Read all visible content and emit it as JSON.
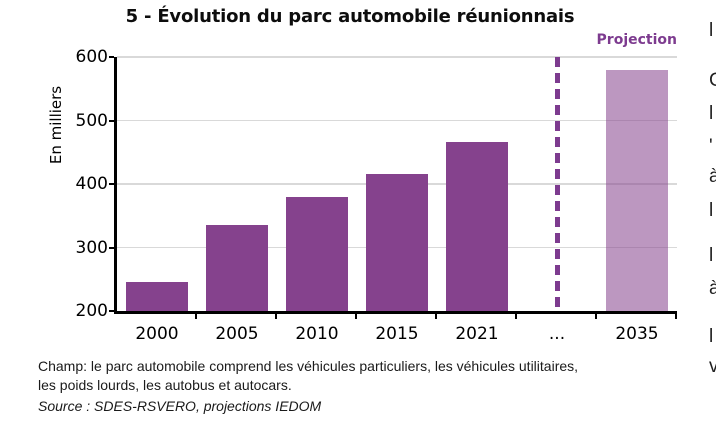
{
  "title": "5 - Évolution du parc automobile réunionnais",
  "projection_label": "Projection",
  "ylabel": "En milliers",
  "footer": {
    "champ_lines": [
      "Champ:  le parc automobile comprend les véhicules particuliers, les véhicules utilitaires,",
      "les poids lourds, les autobus et autocars."
    ],
    "source": "Source : SDES-RSVERO, projections IEDOM"
  },
  "chart_data": {
    "type": "bar",
    "title": "5 - Évolution du parc automobile réunionnais",
    "ylabel": "En milliers",
    "categories": [
      "2000",
      "2005",
      "2010",
      "2015",
      "2021",
      "...",
      "2035"
    ],
    "bars": [
      {
        "category": "2000",
        "value": 245,
        "projection": false
      },
      {
        "category": "2005",
        "value": 336,
        "projection": false
      },
      {
        "category": "2010",
        "value": 380,
        "projection": false
      },
      {
        "category": "2015",
        "value": 415,
        "projection": false
      },
      {
        "category": "2021",
        "value": 466,
        "projection": false
      },
      {
        "category": "...",
        "value": null,
        "projection": null
      },
      {
        "category": "2035",
        "value": 580,
        "projection": true
      }
    ],
    "ylim": [
      200,
      600
    ],
    "yticks": [
      200,
      300,
      400,
      500,
      600
    ],
    "grid": true,
    "legend": "none",
    "annotations": [
      {
        "text": "Projection",
        "position": "top-right",
        "color": "#7d3b8f"
      }
    ],
    "separator": {
      "style": "dashed-vertical-line",
      "at_category": "...",
      "color": "#7d3b8f"
    },
    "colors": {
      "actual_bar": "#85428d",
      "projection_bar": "#bb8ec6",
      "dashed_line": "#7d3b8f",
      "gridline": "#d9d9d9",
      "axis": "#000000",
      "projection_text": "#7d3b8f"
    }
  },
  "adjacent_column_fragments": [
    "l",
    "C",
    "l",
    "'",
    "à",
    "l",
    "l",
    "à",
    "l",
    "v"
  ]
}
